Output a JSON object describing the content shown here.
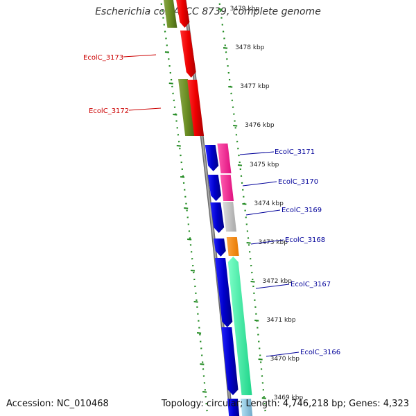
{
  "title": "Escherichia coli ATCC 8739, complete genome",
  "footer": {
    "accession": "Accession: NC_010468",
    "summary": "Topology: circular; Length: 4,746,218 bp; Genes: 4,323"
  },
  "scale_labels": [
    "3479 kbp",
    "3478 kbp",
    "3477 kbp",
    "3476 kbp",
    "3475 kbp",
    "3474 kbp",
    "3473 kbp",
    "3472 kbp",
    "3471 kbp",
    "3470 kbp",
    "3469 kbp"
  ],
  "gene_labels": [
    "EcolC_3173",
    "EcolC_3172",
    "EcolC_3171",
    "EcolC_3170",
    "EcolC_3169",
    "EcolC_3168",
    "EcolC_3167",
    "EcolC_3166"
  ],
  "colors": {
    "backbone": "#808080",
    "left_label": "#cc0000",
    "right_label": "#000099",
    "dotted_track": "#228b22",
    "blue_cds": "#0000ee",
    "red_cds": "#ee0000",
    "olive_cds": "#6b8e23",
    "pink_cds": "#ff1493",
    "gray_cds": "#c0c0c0",
    "orange_cds": "#ff8c00",
    "green_cds": "#00fa9a",
    "lightblue_cds": "#87ceeb"
  }
}
